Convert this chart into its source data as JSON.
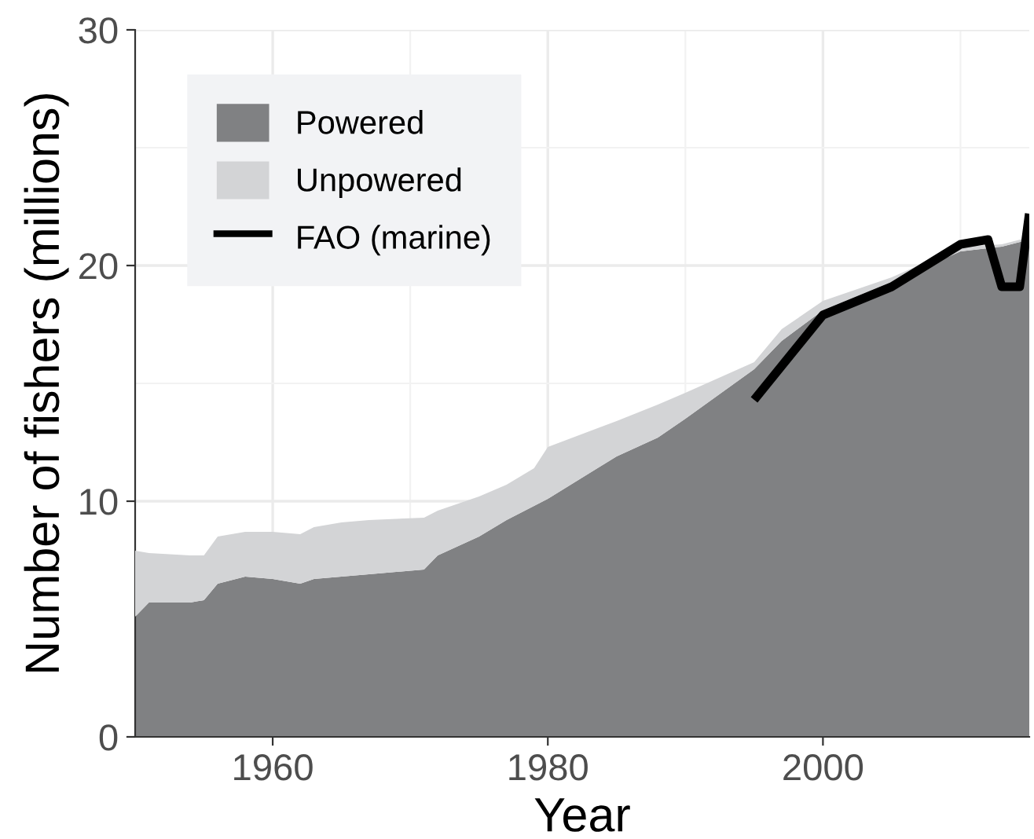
{
  "chart_data": {
    "type": "area",
    "stacked": true,
    "xlabel": "Year",
    "ylabel": "Number of fishers (millions)",
    "x": [
      1950,
      1951,
      1954,
      1955,
      1956,
      1958,
      1960,
      1962,
      1963,
      1965,
      1967,
      1971,
      1972,
      1975,
      1977,
      1979,
      1980,
      1985,
      1988,
      1990,
      1995,
      1997,
      2000,
      2005,
      2010,
      2013,
      2015
    ],
    "series": [
      {
        "name": "Powered",
        "color": "#808183",
        "values": [
          5.1,
          5.7,
          5.7,
          5.8,
          6.5,
          6.8,
          6.7,
          6.5,
          6.7,
          6.8,
          6.9,
          7.1,
          7.7,
          8.5,
          9.2,
          9.8,
          10.1,
          11.9,
          12.7,
          13.5,
          15.6,
          16.8,
          18.1,
          19.3,
          20.6,
          20.8,
          21.1
        ]
      },
      {
        "name": "Unpowered",
        "color": "#d3d4d6",
        "values": [
          2.8,
          2.1,
          2.0,
          1.9,
          2.0,
          1.9,
          2.0,
          2.1,
          2.2,
          2.3,
          2.3,
          2.2,
          1.9,
          1.7,
          1.5,
          1.6,
          2.2,
          1.5,
          1.4,
          1.1,
          0.3,
          0.5,
          0.4,
          0.2,
          0.2,
          0.1,
          0.1
        ]
      },
      {
        "name": "FAO (marine)",
        "type": "line",
        "color": "#000000",
        "x": [
          1995,
          2000,
          2005,
          2010,
          2012,
          2013,
          2014.3,
          2015
        ],
        "values": [
          14.3,
          17.9,
          19.1,
          20.9,
          21.1,
          19.1,
          19.1,
          22.2
        ]
      }
    ],
    "xlim": [
      1950,
      2015
    ],
    "ylim": [
      0,
      30
    ],
    "xticks": [
      1960,
      {
        "value": 1970,
        "label": null
      },
      1980,
      {
        "value": 1990,
        "label": null
      },
      2000,
      {
        "value": 2010,
        "label": null
      }
    ],
    "yticks": [
      0,
      10,
      {
        "value": 15,
        "label": null
      },
      20,
      {
        "value": 25,
        "label": null
      },
      30
    ],
    "grid": true,
    "legend": "top left",
    "line_style": "solid"
  }
}
